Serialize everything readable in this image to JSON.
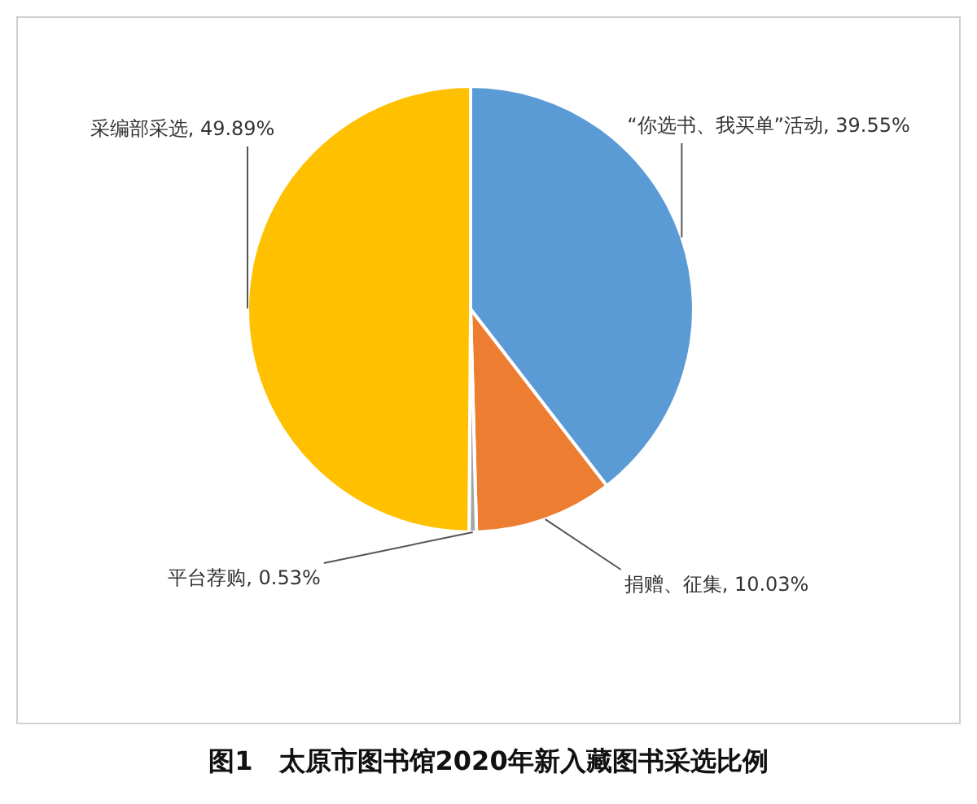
{
  "chart_data": {
    "type": "pie",
    "title": "图1　太原市图书馆2020年新入藏图书采选比例",
    "categories": [
      "“你选书、我买单”活动",
      "捐赠、征集",
      "平台荐购",
      "采编部采选"
    ],
    "values": [
      39.55,
      10.03,
      0.53,
      49.89
    ],
    "value_labels": [
      "39.55%",
      "10.03%",
      "0.53%",
      "49.89%"
    ],
    "colors": [
      "#5b9bd5",
      "#ed7d31",
      "#a5a5a5",
      "#ffc000"
    ],
    "legend": false
  }
}
